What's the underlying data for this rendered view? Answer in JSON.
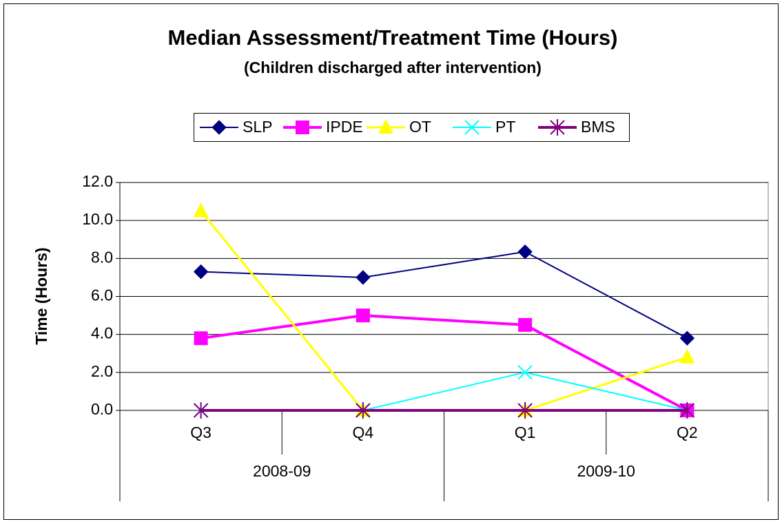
{
  "chart_data": {
    "type": "line",
    "title": "Median Assessment/Treatment Time (Hours)",
    "subtitle": "(Children discharged after intervention)",
    "y_label": "Time (Hours)",
    "categories": [
      "Q3",
      "Q4",
      "Q1",
      "Q2"
    ],
    "category_groups": [
      "2008-09",
      "2009-10"
    ],
    "series": [
      {
        "name": "SLP",
        "color": "#000080",
        "marker": "diamond",
        "values": [
          7.3,
          7.0,
          8.35,
          3.8
        ]
      },
      {
        "name": "IPDE",
        "color": "#FF00FF",
        "marker": "square",
        "values": [
          3.8,
          5.0,
          4.5,
          0
        ]
      },
      {
        "name": "OT",
        "color": "#FFFF00",
        "marker": "triangle",
        "values": [
          10.5,
          0,
          0,
          2.8
        ]
      },
      {
        "name": "PT",
        "color": "#00FFFF",
        "marker": "x",
        "values": [
          0,
          0,
          2.0,
          0
        ]
      },
      {
        "name": "BMS",
        "color": "#800080",
        "marker": "asterisk",
        "values": [
          0,
          0,
          0,
          0
        ]
      }
    ],
    "ylim": [
      0,
      12
    ],
    "yticks": [
      {
        "value": 0,
        "label": "0.0"
      },
      {
        "value": 2,
        "label": "2.0"
      },
      {
        "value": 4,
        "label": "4.0"
      },
      {
        "value": 6,
        "label": "6.0"
      },
      {
        "value": 8,
        "label": "8.0"
      },
      {
        "value": 10,
        "label": "10.0"
      },
      {
        "value": 12,
        "label": "12.0"
      }
    ],
    "grid": true
  }
}
